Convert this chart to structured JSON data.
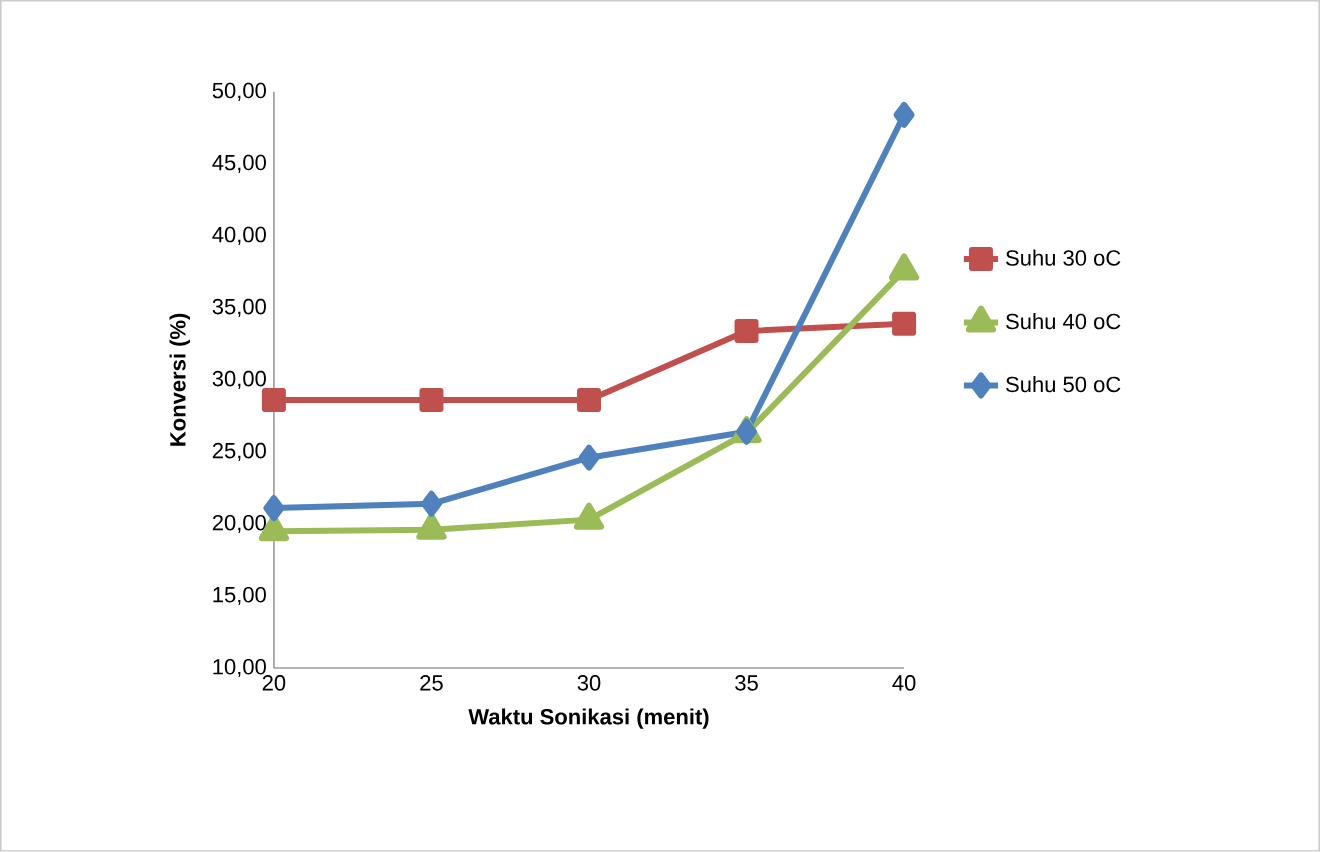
{
  "chart_data": {
    "type": "line",
    "xlabel": "Waktu Sonikasi (menit)",
    "ylabel": "Konversi (%)",
    "categories": [
      "20",
      "25",
      "30",
      "35",
      "40"
    ],
    "series": [
      {
        "name": "Suhu 30 oC",
        "color": "#c0504d",
        "marker": "square",
        "values": [
          28.6,
          28.6,
          28.6,
          33.4,
          33.9
        ]
      },
      {
        "name": "Suhu 40 oC",
        "color": "#9bbb59",
        "marker": "triangle",
        "values": [
          19.5,
          19.6,
          20.3,
          26.3,
          37.6
        ]
      },
      {
        "name": "Suhu 50 oC",
        "color": "#4f81bd",
        "marker": "diamond",
        "values": [
          21.1,
          21.4,
          24.6,
          26.4,
          48.4
        ]
      }
    ],
    "ylim": [
      10,
      50
    ],
    "yticks": [
      {
        "value": 10,
        "label": "10,00"
      },
      {
        "value": 15,
        "label": "15,00"
      },
      {
        "value": 20,
        "label": "20,00"
      },
      {
        "value": 25,
        "label": "25,00"
      },
      {
        "value": 30,
        "label": "30,00"
      },
      {
        "value": 35,
        "label": "35,00"
      },
      {
        "value": 40,
        "label": "40,00"
      },
      {
        "value": 45,
        "label": "45,00"
      },
      {
        "value": 50,
        "label": "50,00"
      }
    ],
    "grid": false,
    "legend": "right"
  }
}
